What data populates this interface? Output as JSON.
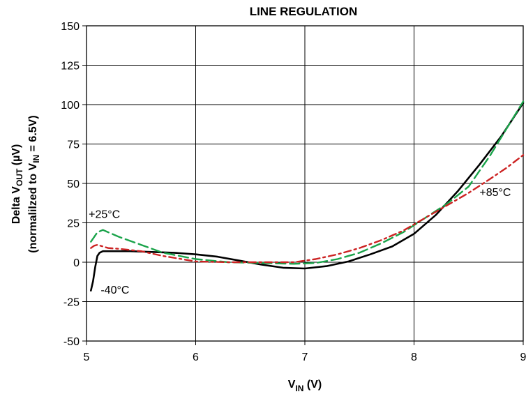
{
  "chart_data": {
    "type": "line",
    "title": "LINE REGULATION",
    "xlabel": "V_IN (V)",
    "xlabel_parts": {
      "main": "V",
      "sub": "IN",
      "rest": " (V)"
    },
    "ylabel_line1_parts": {
      "main": "Delta V",
      "sub": "OUT",
      "rest": " (µV)"
    },
    "ylabel_line2_parts": {
      "main": "(normalilzed to V",
      "sub": "IN",
      "rest": " = 6.5V)"
    },
    "xlim": [
      5,
      9
    ],
    "ylim": [
      -50,
      150
    ],
    "xticks": [
      "5",
      "6",
      "7",
      "8",
      "9"
    ],
    "yticks": [
      "-50",
      "-25",
      "0",
      "25",
      "50",
      "75",
      "100",
      "125",
      "150"
    ],
    "grid": true,
    "series": [
      {
        "name": "-40°C",
        "color": "#000000",
        "dash": "solid",
        "x": [
          5.04,
          5.06,
          5.08,
          5.1,
          5.12,
          5.15,
          5.2,
          5.3,
          5.4,
          5.6,
          5.8,
          6.0,
          6.2,
          6.4,
          6.6,
          6.8,
          7.0,
          7.2,
          7.4,
          7.6,
          7.8,
          8.0,
          8.2,
          8.4,
          8.6,
          8.8,
          9.0
        ],
        "y": [
          -18,
          -12,
          -3,
          4,
          6,
          7,
          7,
          7,
          7,
          6.5,
          6,
          5,
          3.5,
          1,
          -1.5,
          -3.5,
          -4,
          -2.5,
          0.5,
          5,
          10,
          18,
          30,
          45,
          62,
          80,
          101
        ]
      },
      {
        "name": "+25°C",
        "color": "#1aa34a",
        "dash": "long-dash",
        "x": [
          5.04,
          5.07,
          5.1,
          5.15,
          5.2,
          5.3,
          5.5,
          5.7,
          6.0,
          6.3,
          6.6,
          6.9,
          7.1,
          7.3,
          7.5,
          7.7,
          7.9,
          8.1,
          8.3,
          8.5,
          8.7,
          8.85,
          9.0
        ],
        "y": [
          13,
          16,
          19,
          20.5,
          19,
          16,
          11,
          6,
          2,
          0,
          -0.5,
          -1,
          -0.5,
          2,
          6,
          12,
          19,
          28,
          37,
          48,
          68,
          85,
          102
        ]
      },
      {
        "name": "+85°C",
        "color": "#cc2222",
        "dash": "dash-dot",
        "x": [
          5.04,
          5.07,
          5.1,
          5.15,
          5.2,
          5.3,
          5.5,
          5.7,
          6.0,
          6.3,
          6.6,
          6.9,
          7.1,
          7.3,
          7.5,
          7.7,
          7.9,
          8.1,
          8.3,
          8.5,
          8.7,
          8.85,
          9.0
        ],
        "y": [
          9,
          10.5,
          11,
          10,
          9,
          8.5,
          7,
          4,
          0.5,
          0,
          0,
          0,
          2,
          5,
          9,
          14,
          20,
          28,
          36,
          44,
          53,
          60,
          68
        ]
      }
    ],
    "annotations": [
      {
        "text": "+25°C",
        "x": 5.02,
        "y": 28
      },
      {
        "text": "-40°C",
        "x": 5.13,
        "y": -20
      },
      {
        "text": "+85°C",
        "x": 8.6,
        "y": 42
      }
    ]
  }
}
